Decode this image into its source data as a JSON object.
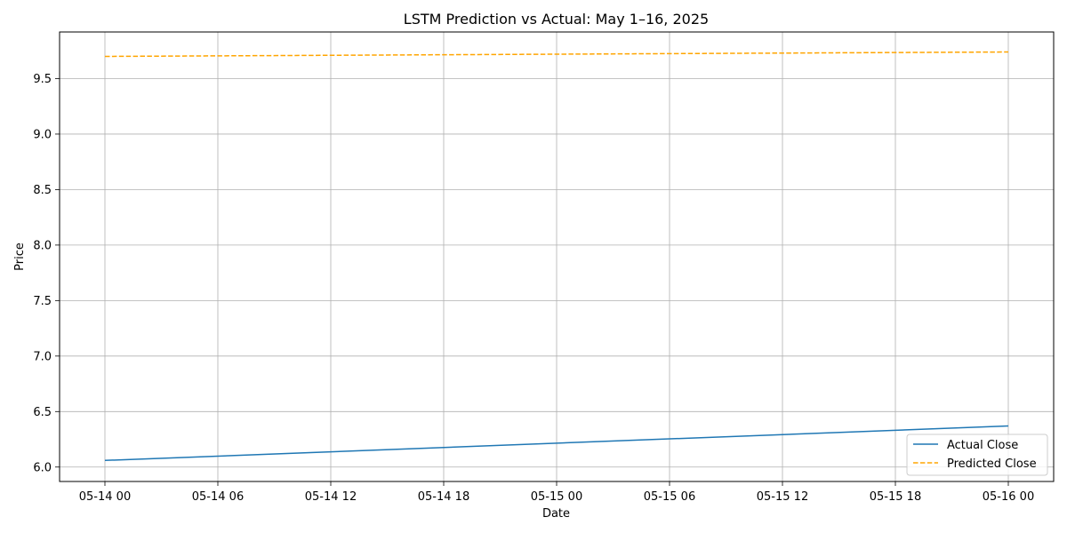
{
  "chart_data": {
    "type": "line",
    "title": "LSTM Prediction vs Actual: May 1–16, 2025",
    "xlabel": "Date",
    "ylabel": "Price",
    "grid": true,
    "legend_position": "bottom-right",
    "x_ticks": [
      "05-14 00",
      "05-14 06",
      "05-14 12",
      "05-14 18",
      "05-15 00",
      "05-15 06",
      "05-15 12",
      "05-15 18",
      "05-16 00"
    ],
    "ylim": [
      5.87,
      9.92
    ],
    "y_ticks": [
      6.0,
      6.5,
      7.0,
      7.5,
      8.0,
      8.5,
      9.0,
      9.5
    ],
    "y_tick_labels": [
      "6.0",
      "6.5",
      "7.0",
      "7.5",
      "8.0",
      "8.5",
      "9.0",
      "9.5"
    ],
    "x": [
      "2025-05-14 00:00",
      "2025-05-16 00:00"
    ],
    "series": [
      {
        "name": "Actual Close",
        "color": "#1f77b4",
        "style": "solid",
        "values": [
          6.06,
          6.37
        ]
      },
      {
        "name": "Predicted Close",
        "color": "#ffa500",
        "style": "dashed",
        "values": [
          9.7,
          9.74
        ]
      }
    ]
  }
}
